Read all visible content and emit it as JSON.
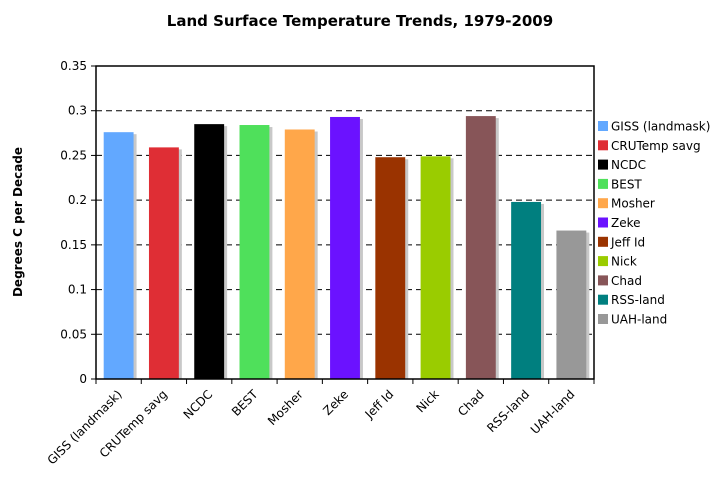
{
  "chart_data": {
    "type": "bar",
    "title": "Land Surface Temperature Trends, 1979-2009",
    "xlabel": "",
    "ylabel": "Degrees C per Decade",
    "ylim": [
      0,
      0.35
    ],
    "yticks": [
      "0",
      "0.05",
      "0.1",
      "0.15",
      "0.2",
      "0.25",
      "0.3",
      "0.35"
    ],
    "ytick_values": [
      0,
      0.05,
      0.1,
      0.15,
      0.2,
      0.25,
      0.3,
      0.35
    ],
    "grid": "horizontal dashed",
    "legend_position": "right",
    "categories": [
      "GISS (landmask)",
      "CRUTemp savg",
      "NCDC",
      "BEST",
      "Mosher",
      "Zeke",
      "Jeff Id",
      "Nick",
      "Chad",
      "RSS-land",
      "UAH-land"
    ],
    "values": [
      0.276,
      0.259,
      0.285,
      0.284,
      0.279,
      0.293,
      0.248,
      0.249,
      0.294,
      0.198,
      0.166
    ],
    "colors": [
      "#62A8FF",
      "#DF2E35",
      "#000000",
      "#4FE05B",
      "#FFA74A",
      "#6B12FF",
      "#9A3300",
      "#9ACC00",
      "#875558",
      "#007F7F",
      "#989898"
    ]
  }
}
